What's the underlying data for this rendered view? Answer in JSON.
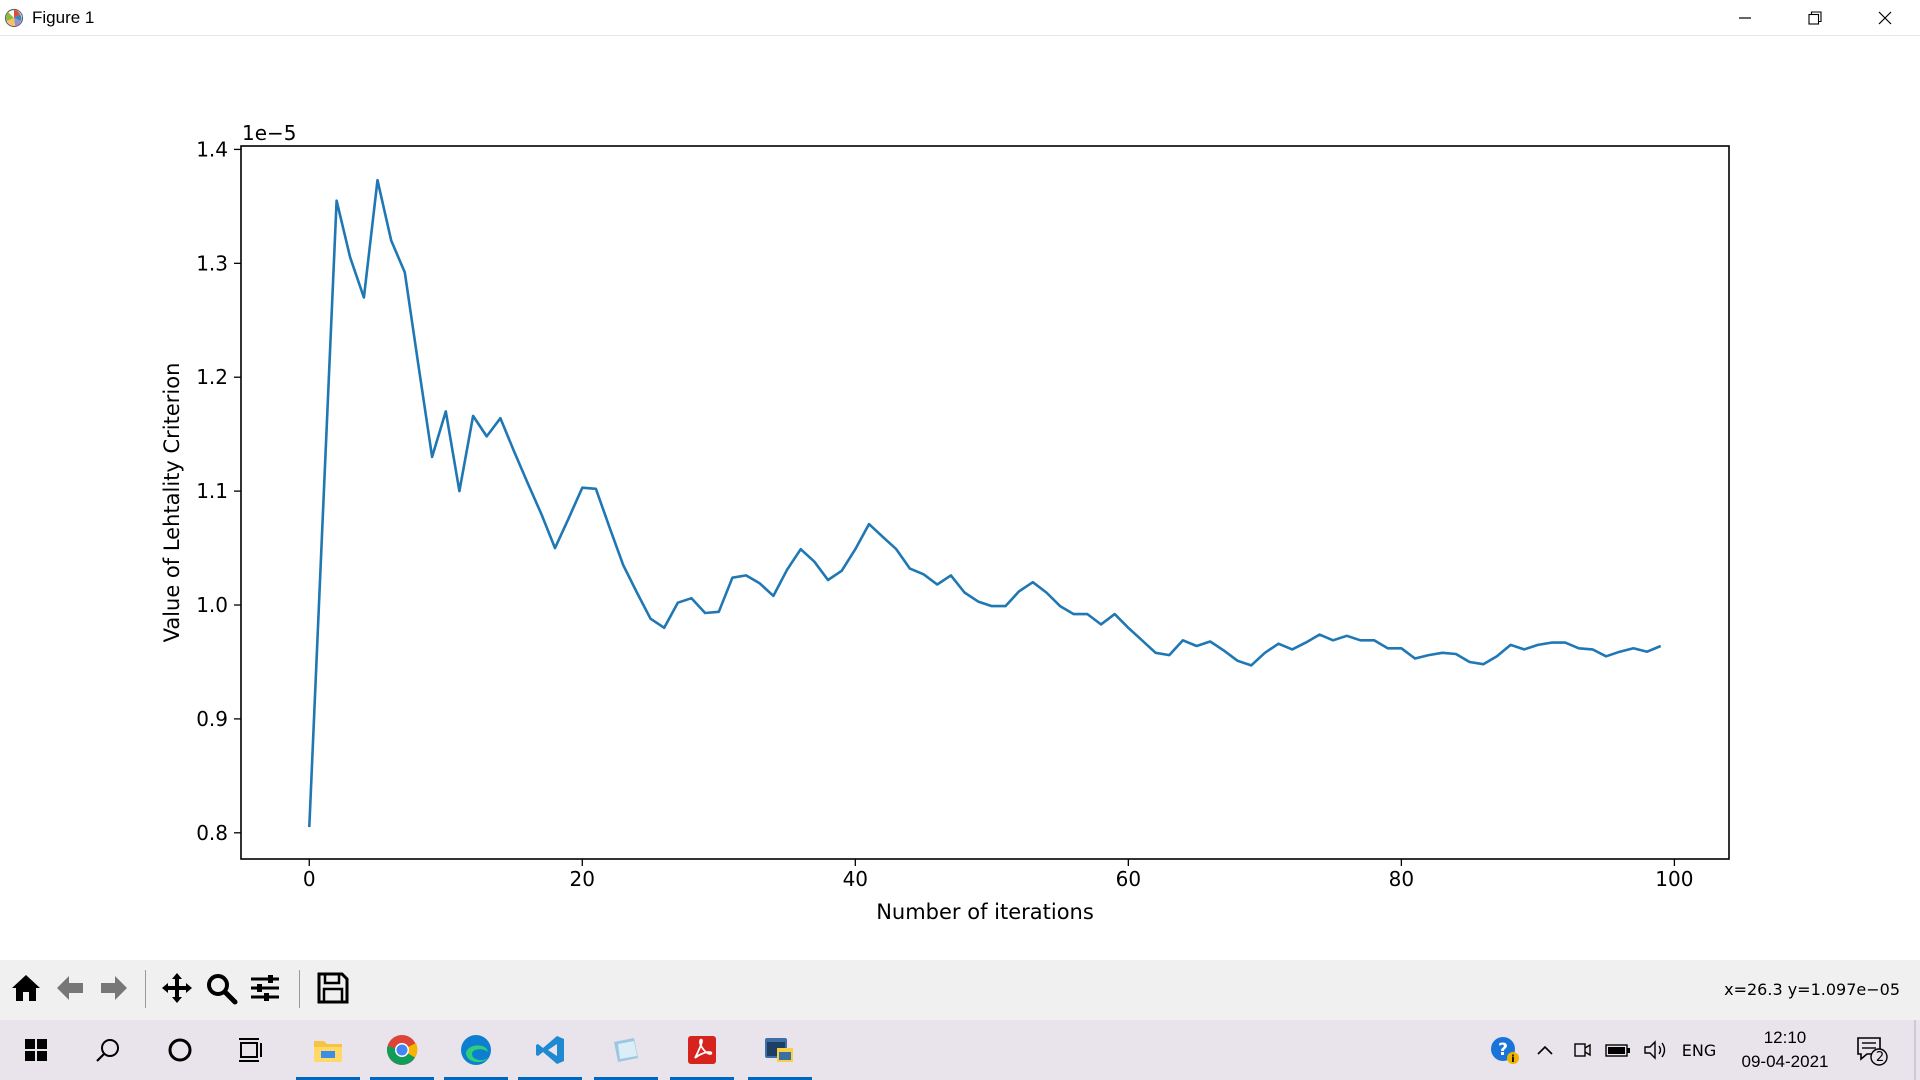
{
  "window": {
    "title": "Figure 1",
    "icon": "matplotlib-icon",
    "controls": [
      "minimize-icon",
      "restore-icon",
      "close-icon"
    ]
  },
  "chart_data": {
    "type": "line",
    "title": "",
    "xlabel": "Number of iterations",
    "ylabel": "Value of Lehtality Criterion",
    "offset_label": "1e−5",
    "xlim": [
      -5,
      104
    ],
    "ylim": [
      0.777,
      1.403
    ],
    "xticks": [
      0,
      20,
      40,
      60,
      80,
      100
    ],
    "yticks": [
      0.8,
      0.9,
      1.0,
      1.1,
      1.2,
      1.3,
      1.4
    ],
    "ytick_labels": [
      "0.8",
      "0.9",
      "1.0",
      "1.1",
      "1.2",
      "1.3",
      "1.4"
    ],
    "xtick_labels": [
      "0",
      "20",
      "40",
      "60",
      "80",
      "100"
    ],
    "grid": false,
    "line_color": "#1f77b4",
    "series": [
      {
        "x": [
          0,
          1,
          2,
          3,
          4,
          5,
          6,
          7,
          8,
          9,
          10,
          11,
          12,
          13,
          14,
          15,
          16,
          17,
          18,
          19,
          20,
          21,
          22,
          23,
          24,
          25,
          26,
          27,
          28,
          29,
          30,
          31,
          32,
          33,
          34,
          35,
          36,
          37,
          38,
          39,
          40,
          41,
          42,
          43,
          44,
          45,
          46,
          47,
          48,
          49,
          50,
          51,
          52,
          53,
          54,
          55,
          56,
          57,
          58,
          59,
          60,
          61,
          62,
          63,
          64,
          65,
          66,
          67,
          68,
          69,
          70,
          71,
          72,
          73,
          74,
          75,
          76,
          77,
          78,
          79,
          80,
          81,
          82,
          83,
          84,
          85,
          86,
          87,
          88,
          89,
          90,
          91,
          92,
          93,
          94,
          95,
          96,
          97,
          98,
          99
        ],
        "values": [
          0.805,
          1.08,
          1.355,
          1.305,
          1.27,
          1.373,
          1.32,
          1.292,
          1.21,
          1.13,
          1.17,
          1.1,
          1.166,
          1.148,
          1.164,
          1.135,
          1.107,
          1.08,
          1.05,
          1.076,
          1.103,
          1.102,
          1.068,
          1.035,
          1.011,
          0.988,
          0.98,
          1.002,
          1.006,
          0.993,
          0.994,
          1.024,
          1.026,
          1.019,
          1.008,
          1.031,
          1.049,
          1.038,
          1.022,
          1.03,
          1.049,
          1.071,
          1.06,
          1.049,
          1.032,
          1.027,
          1.018,
          1.026,
          1.011,
          1.003,
          0.999,
          0.999,
          1.012,
          1.02,
          1.011,
          0.999,
          0.992,
          0.992,
          0.983,
          0.992,
          0.98,
          0.969,
          0.958,
          0.956,
          0.969,
          0.964,
          0.968,
          0.96,
          0.951,
          0.947,
          0.958,
          0.966,
          0.961,
          0.967,
          0.974,
          0.969,
          0.973,
          0.969,
          0.969,
          0.962,
          0.962,
          0.953,
          0.956,
          0.958,
          0.957,
          0.95,
          0.948,
          0.955,
          0.965,
          0.961,
          0.965,
          0.967,
          0.967,
          0.962,
          0.961,
          0.955,
          0.959,
          0.962,
          0.959,
          0.964
        ]
      }
    ]
  },
  "toolbar": {
    "buttons": [
      "home-icon",
      "back-icon",
      "forward-icon",
      "pan-icon",
      "zoom-icon",
      "configure-subplots-icon",
      "save-icon"
    ],
    "coords": "x=26.3 y=1.097e−05"
  },
  "taskbar": {
    "apps": [
      "start-icon",
      "search-icon",
      "cortana-icon",
      "task-view-icon",
      "file-explorer-icon",
      "chrome-icon",
      "edge-icon",
      "vscode-icon",
      "notepad-icon",
      "acrobat-icon",
      "python-icon"
    ],
    "tray": {
      "language": "ENG",
      "time": "12:10",
      "date": "09-04-2021",
      "notification_count": "2"
    }
  }
}
